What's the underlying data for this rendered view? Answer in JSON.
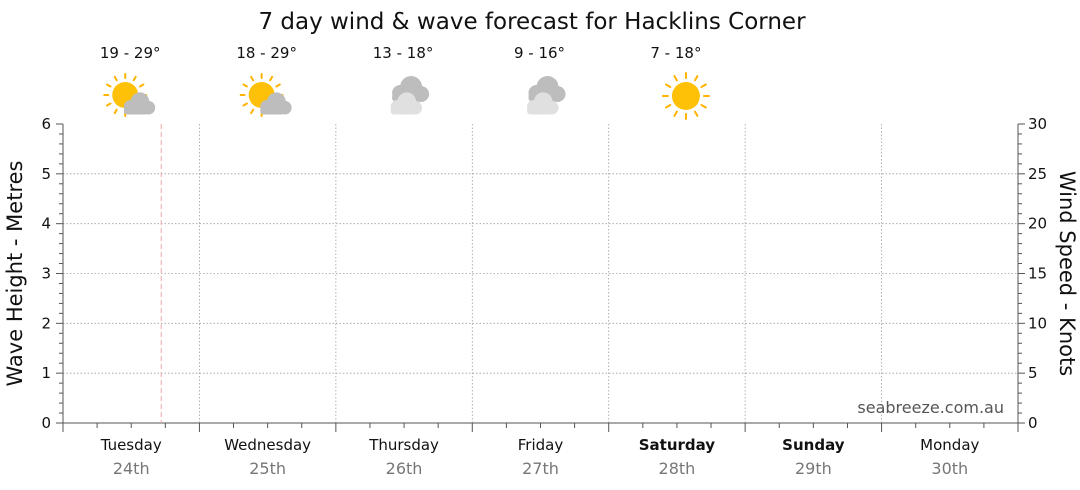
{
  "title": "7 day wind & wave forecast for Hacklins Corner",
  "watermark": "seabreeze.com.au",
  "chart_data": {
    "type": "line",
    "title": "7 day wind & wave forecast for Hacklins Corner",
    "ylabel_left": "Wave Height - Metres",
    "ylabel_right": "Wind Speed - Knots",
    "ylim_left": [
      0,
      6
    ],
    "ylim_right": [
      0,
      30
    ],
    "yticks_left": [
      "0",
      "1",
      "2",
      "3",
      "4",
      "5",
      "6"
    ],
    "yticks_right": [
      "0",
      "5",
      "10",
      "15",
      "20",
      "25",
      "30"
    ],
    "grid": true,
    "current_time_fraction": 0.72,
    "days": [
      {
        "day": "Tuesday",
        "date": "24th",
        "temp": "19 - 29°",
        "icon": "partly-cloudy-icon",
        "weekend": false
      },
      {
        "day": "Wednesday",
        "date": "25th",
        "temp": "18 - 29°",
        "icon": "partly-cloudy-icon",
        "weekend": false
      },
      {
        "day": "Thursday",
        "date": "26th",
        "temp": "13 - 18°",
        "icon": "cloudy-icon",
        "weekend": false
      },
      {
        "day": "Friday",
        "date": "27th",
        "temp": "9 - 16°",
        "icon": "cloudy-icon",
        "weekend": false
      },
      {
        "day": "Saturday",
        "date": "28th",
        "temp": "7 - 18°",
        "icon": "sunny-icon",
        "weekend": true
      },
      {
        "day": "Sunday",
        "date": "29th",
        "temp": "",
        "icon": "",
        "weekend": true
      },
      {
        "day": "Monday",
        "date": "30th",
        "temp": "",
        "icon": "",
        "weekend": false
      }
    ],
    "series": []
  },
  "colors": {
    "sun": "#FFC107",
    "sun_ray": "#FFB300",
    "cloud_dark": "#BDBDBD",
    "cloud_light": "#E0E0E0",
    "now_line": "#F4A6A6",
    "grid": "#9E9E9E",
    "axis": "#555555",
    "date_text": "#777777"
  }
}
